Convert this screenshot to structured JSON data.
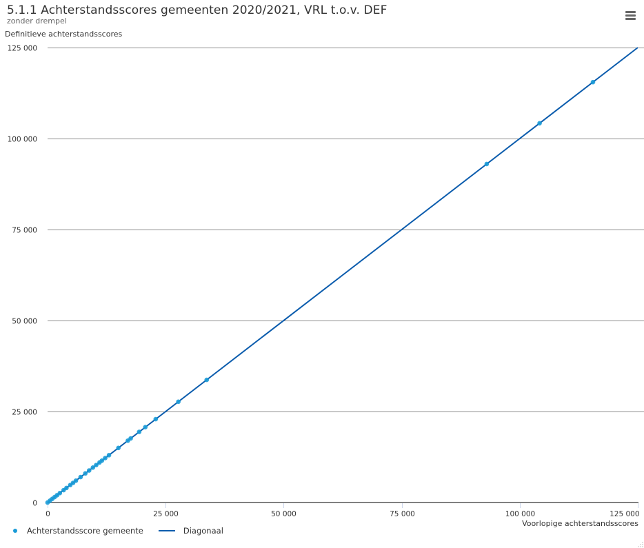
{
  "header": {
    "title": "5.1.1 Achterstandsscores gemeenten 2020/2021, VRL t.o.v. DEF",
    "subtitle": "zonder drempel",
    "menu_icon": "hamburger-menu-icon"
  },
  "axes": {
    "y_title": "Definitieve achterstandsscores",
    "x_title": "Voorlopige achterstandsscores",
    "y_ticks": [
      "0",
      "25 000",
      "50 000",
      "75 000",
      "100 000",
      "125 000"
    ],
    "x_ticks": [
      "0",
      "25 000",
      "50 000",
      "75 000",
      "100 000",
      "125 000"
    ]
  },
  "legend": {
    "items": [
      {
        "label": "Achterstandsscore gemeente",
        "symbol": "dot",
        "color": "#1a9bd7"
      },
      {
        "label": "Diagonaal",
        "symbol": "line",
        "color": "#0b5cad"
      }
    ]
  },
  "colors": {
    "points": "#1a9bd7",
    "diagonal": "#0b5cad",
    "grid": "#8c8c8c",
    "axis": "#808080",
    "tick": "#ccd6eb"
  },
  "chart_data": {
    "type": "scatter",
    "title": "5.1.1 Achterstandsscores gemeenten 2020/2021, VRL t.o.v. DEF",
    "subtitle": "zonder drempel",
    "xlabel": "Voorlopige achterstandsscores",
    "ylabel": "Definitieve achterstandsscores",
    "xlim": [
      0,
      125000
    ],
    "ylim": [
      0,
      125000
    ],
    "x_ticks": [
      0,
      25000,
      50000,
      75000,
      100000,
      125000
    ],
    "y_ticks": [
      0,
      25000,
      50000,
      75000,
      100000,
      125000
    ],
    "grid": "horizontal",
    "legend_position": "bottom-left",
    "series": [
      {
        "name": "Achterstandsscore gemeente",
        "type": "scatter",
        "points": [
          [
            0,
            0
          ],
          [
            500,
            500
          ],
          [
            1000,
            1000
          ],
          [
            1500,
            1500
          ],
          [
            2000,
            2000
          ],
          [
            2600,
            2600
          ],
          [
            3400,
            3400
          ],
          [
            4000,
            4000
          ],
          [
            4800,
            4800
          ],
          [
            5400,
            5400
          ],
          [
            6000,
            6000
          ],
          [
            7000,
            7000
          ],
          [
            8000,
            8000
          ],
          [
            8800,
            8800
          ],
          [
            9600,
            9600
          ],
          [
            10300,
            10300
          ],
          [
            11000,
            11000
          ],
          [
            11500,
            11500
          ],
          [
            12200,
            12200
          ],
          [
            13000,
            13000
          ],
          [
            15000,
            15000
          ],
          [
            17000,
            17000
          ],
          [
            17600,
            17600
          ],
          [
            19400,
            19400
          ],
          [
            20700,
            20700
          ],
          [
            22900,
            22900
          ],
          [
            27700,
            27700
          ],
          [
            33700,
            33700
          ],
          [
            93000,
            93000
          ],
          [
            104200,
            104200
          ],
          [
            115500,
            115500
          ]
        ]
      },
      {
        "name": "Diagonaal",
        "type": "line",
        "points": [
          [
            0,
            0
          ],
          [
            125000,
            125000
          ]
        ]
      }
    ]
  }
}
